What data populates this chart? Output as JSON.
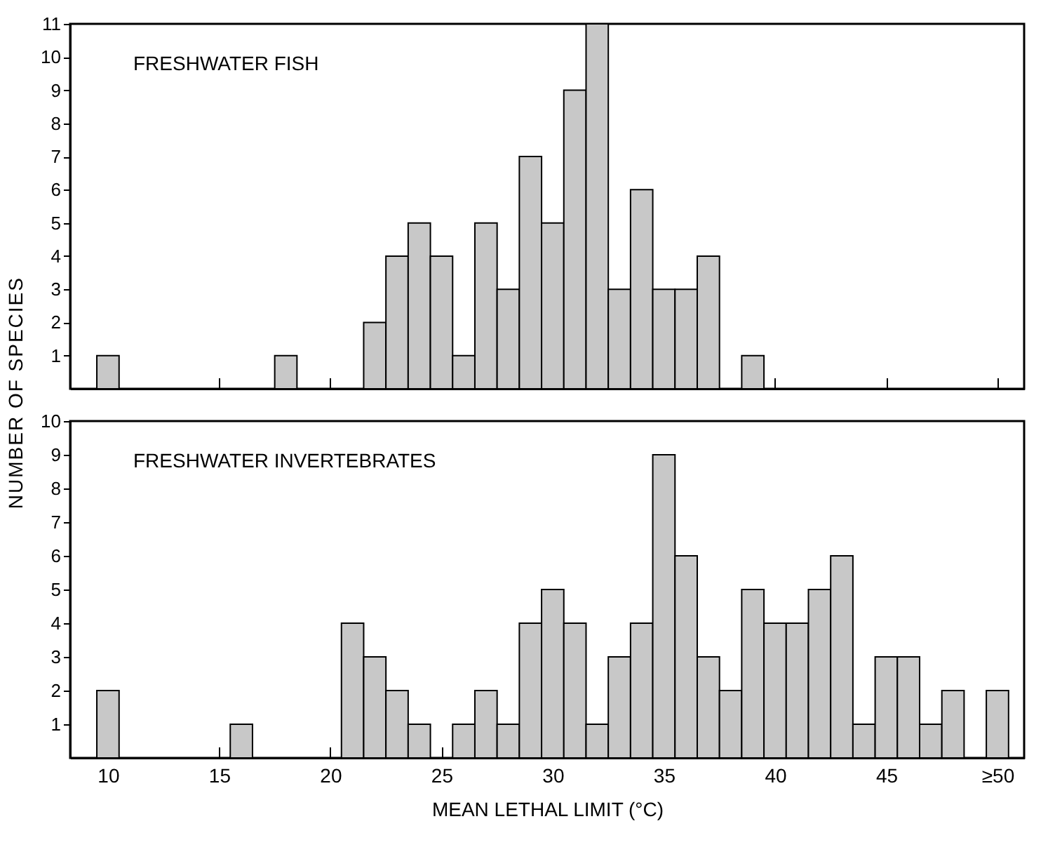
{
  "chart_data": [
    {
      "type": "histogram",
      "title": "FRESHWATER FISH",
      "ylabel": "NUMBER OF SPECIES",
      "color": "#c8c8c8",
      "bins": [
        9.5,
        10.5,
        11.5,
        12.5,
        13.5,
        14.5,
        15.5,
        16.5,
        17.5,
        18.5,
        19.5,
        20.5,
        21.5,
        22.5,
        23.5,
        24.5,
        25.5,
        26.5,
        27.5,
        28.5,
        29.5,
        30.5,
        31.5,
        32.5,
        33.5,
        34.5,
        35.5,
        36.5,
        37.5,
        38.5,
        39.5,
        40.5,
        41.5,
        42.5,
        43.5,
        44.5,
        45.5,
        46.5,
        47.5,
        48.5,
        49.5,
        50.5
      ],
      "values": [
        1,
        0,
        0,
        0,
        0,
        0,
        0,
        0,
        1,
        0,
        0,
        0,
        2,
        4,
        5,
        4,
        1,
        5,
        3,
        7,
        5,
        9,
        11,
        3,
        6,
        3,
        3,
        4,
        0,
        1,
        0,
        0,
        0,
        0,
        0,
        0,
        0,
        0,
        0,
        0,
        0
      ],
      "xlim": [
        8.3,
        51.2
      ],
      "xticks": [
        10,
        15,
        20,
        25,
        30,
        35,
        40,
        45,
        50
      ],
      "ylim": [
        0,
        11
      ],
      "yticks": [
        1,
        2,
        3,
        4,
        5,
        6,
        7,
        8,
        9,
        10,
        11
      ],
      "tick_labels": "y",
      "grid": false
    },
    {
      "type": "histogram",
      "title": "FRESHWATER INVERTEBRATES",
      "xlabel": "MEAN LETHAL LIMIT (°C)",
      "color": "#c8c8c8",
      "bins": [
        9.5,
        10.5,
        11.5,
        12.5,
        13.5,
        14.5,
        15.5,
        16.5,
        17.5,
        18.5,
        19.5,
        20.5,
        21.5,
        22.5,
        23.5,
        24.5,
        25.5,
        26.5,
        27.5,
        28.5,
        29.5,
        30.5,
        31.5,
        32.5,
        33.5,
        34.5,
        35.5,
        36.5,
        37.5,
        38.5,
        39.5,
        40.5,
        41.5,
        42.5,
        43.5,
        44.5,
        45.5,
        46.5,
        47.5,
        48.5,
        49.5,
        50.5
      ],
      "values": [
        2,
        0,
        0,
        0,
        0,
        0,
        1,
        0,
        0,
        0,
        0,
        4,
        3,
        2,
        1,
        0,
        1,
        2,
        1,
        4,
        5,
        4,
        1,
        3,
        4,
        9,
        6,
        3,
        2,
        5,
        4,
        4,
        5,
        6,
        1,
        3,
        3,
        1,
        2,
        0,
        2
      ],
      "xlim": [
        8.3,
        51.2
      ],
      "xticks": [
        10,
        15,
        20,
        25,
        30,
        35,
        40,
        45,
        {
          "value": 50,
          "label": "≥50"
        }
      ],
      "ylim": [
        0,
        10
      ],
      "yticks": [
        1,
        2,
        3,
        4,
        5,
        6,
        7,
        8,
        9,
        10
      ],
      "grid": false
    }
  ]
}
